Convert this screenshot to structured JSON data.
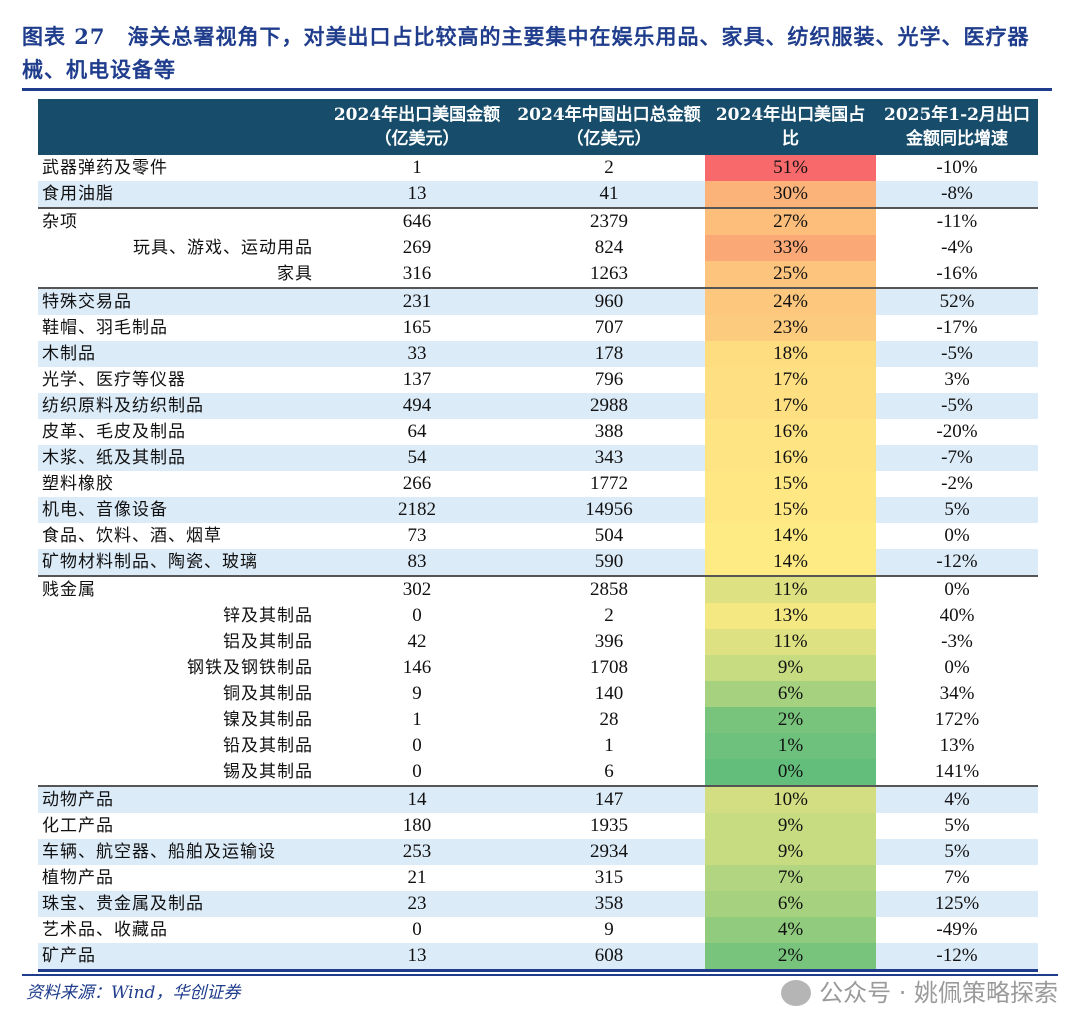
{
  "title": "图表 27　海关总署视角下，对美出口占比较高的主要集中在娱乐用品、家具、纺织服装、光学、医疗器械、机电设备等",
  "headers": [
    "",
    "2024年出口美国金额（亿美元）",
    "2024年中国出口总金额（亿美元）",
    "2024年出口美国占比",
    "2025年1-2月出口金额同比增速"
  ],
  "colors": {
    "header_bg": "#174d6b",
    "stripe": "#dcebf8",
    "title": "#1f3d8c",
    "scale_min": "#63be7b",
    "scale_mid": "#ffeb84",
    "scale_max": "#f8696b"
  },
  "rows": [
    {
      "name": "武器弹药及零件",
      "us": "1",
      "total": "2",
      "share": "51%",
      "yoy": "-10%",
      "level": 0,
      "blue": false,
      "gstart": false
    },
    {
      "name": "食用油脂",
      "us": "13",
      "total": "41",
      "share": "30%",
      "yoy": "-8%",
      "level": 0,
      "blue": true,
      "gstart": false
    },
    {
      "name": "杂项",
      "us": "646",
      "total": "2379",
      "share": "27%",
      "yoy": "-11%",
      "level": 0,
      "blue": false,
      "gstart": true
    },
    {
      "name": "玩具、游戏、运动用品",
      "us": "269",
      "total": "824",
      "share": "33%",
      "yoy": "-4%",
      "level": 1,
      "blue": false,
      "gstart": false
    },
    {
      "name": "家具",
      "us": "316",
      "total": "1263",
      "share": "25%",
      "yoy": "-16%",
      "level": 1,
      "blue": false,
      "gstart": false
    },
    {
      "name": "特殊交易品",
      "us": "231",
      "total": "960",
      "share": "24%",
      "yoy": "52%",
      "level": 0,
      "blue": true,
      "gstart": true
    },
    {
      "name": "鞋帽、羽毛制品",
      "us": "165",
      "total": "707",
      "share": "23%",
      "yoy": "-17%",
      "level": 0,
      "blue": false,
      "gstart": false
    },
    {
      "name": "木制品",
      "us": "33",
      "total": "178",
      "share": "18%",
      "yoy": "-5%",
      "level": 0,
      "blue": true,
      "gstart": false
    },
    {
      "name": "光学、医疗等仪器",
      "us": "137",
      "total": "796",
      "share": "17%",
      "yoy": "3%",
      "level": 0,
      "blue": false,
      "gstart": false
    },
    {
      "name": "纺织原料及纺织制品",
      "us": "494",
      "total": "2988",
      "share": "17%",
      "yoy": "-5%",
      "level": 0,
      "blue": true,
      "gstart": false
    },
    {
      "name": "皮革、毛皮及制品",
      "us": "64",
      "total": "388",
      "share": "16%",
      "yoy": "-20%",
      "level": 0,
      "blue": false,
      "gstart": false
    },
    {
      "name": "木浆、纸及其制品",
      "us": "54",
      "total": "343",
      "share": "16%",
      "yoy": "-7%",
      "level": 0,
      "blue": true,
      "gstart": false
    },
    {
      "name": "塑料橡胶",
      "us": "266",
      "total": "1772",
      "share": "15%",
      "yoy": "-2%",
      "level": 0,
      "blue": false,
      "gstart": false
    },
    {
      "name": "机电、音像设备",
      "us": "2182",
      "total": "14956",
      "share": "15%",
      "yoy": "5%",
      "level": 0,
      "blue": true,
      "gstart": false
    },
    {
      "name": "食品、饮料、酒、烟草",
      "us": "73",
      "total": "504",
      "share": "14%",
      "yoy": "0%",
      "level": 0,
      "blue": false,
      "gstart": false
    },
    {
      "name": "矿物材料制品、陶瓷、玻璃",
      "us": "83",
      "total": "590",
      "share": "14%",
      "yoy": "-12%",
      "level": 0,
      "blue": true,
      "gstart": false
    },
    {
      "name": "贱金属",
      "us": "302",
      "total": "2858",
      "share": "11%",
      "yoy": "0%",
      "level": 0,
      "blue": false,
      "gstart": true
    },
    {
      "name": "锌及其制品",
      "us": "0",
      "total": "2",
      "share": "13%",
      "yoy": "40%",
      "level": 1,
      "blue": false,
      "gstart": false
    },
    {
      "name": "铝及其制品",
      "us": "42",
      "total": "396",
      "share": "11%",
      "yoy": "-3%",
      "level": 1,
      "blue": false,
      "gstart": false
    },
    {
      "name": "钢铁及钢铁制品",
      "us": "146",
      "total": "1708",
      "share": "9%",
      "yoy": "0%",
      "level": 1,
      "blue": false,
      "gstart": false
    },
    {
      "name": "铜及其制品",
      "us": "9",
      "total": "140",
      "share": "6%",
      "yoy": "34%",
      "level": 1,
      "blue": false,
      "gstart": false
    },
    {
      "name": "镍及其制品",
      "us": "1",
      "total": "28",
      "share": "2%",
      "yoy": "172%",
      "level": 1,
      "blue": false,
      "gstart": false
    },
    {
      "name": "铅及其制品",
      "us": "0",
      "total": "1",
      "share": "1%",
      "yoy": "13%",
      "level": 1,
      "blue": false,
      "gstart": false
    },
    {
      "name": "锡及其制品",
      "us": "0",
      "total": "6",
      "share": "0%",
      "yoy": "141%",
      "level": 1,
      "blue": false,
      "gstart": false
    },
    {
      "name": "动物产品",
      "us": "14",
      "total": "147",
      "share": "10%",
      "yoy": "4%",
      "level": 0,
      "blue": true,
      "gstart": true
    },
    {
      "name": "化工产品",
      "us": "180",
      "total": "1935",
      "share": "9%",
      "yoy": "5%",
      "level": 0,
      "blue": false,
      "gstart": false
    },
    {
      "name": "车辆、航空器、船舶及运输设",
      "us": "253",
      "total": "2934",
      "share": "9%",
      "yoy": "5%",
      "level": 0,
      "blue": true,
      "gstart": false
    },
    {
      "name": "植物产品",
      "us": "21",
      "total": "315",
      "share": "7%",
      "yoy": "7%",
      "level": 0,
      "blue": false,
      "gstart": false
    },
    {
      "name": "珠宝、贵金属及制品",
      "us": "23",
      "total": "358",
      "share": "6%",
      "yoy": "125%",
      "level": 0,
      "blue": true,
      "gstart": false
    },
    {
      "name": "艺术品、收藏品",
      "us": "0",
      "total": "9",
      "share": "4%",
      "yoy": "-49%",
      "level": 0,
      "blue": false,
      "gstart": false
    },
    {
      "name": "矿产品",
      "us": "13",
      "total": "608",
      "share": "2%",
      "yoy": "-12%",
      "level": 0,
      "blue": true,
      "gstart": false
    }
  ],
  "source": "资料来源：Wind，华创证券",
  "watermark": "公众号 · 姚佩策略探索"
}
